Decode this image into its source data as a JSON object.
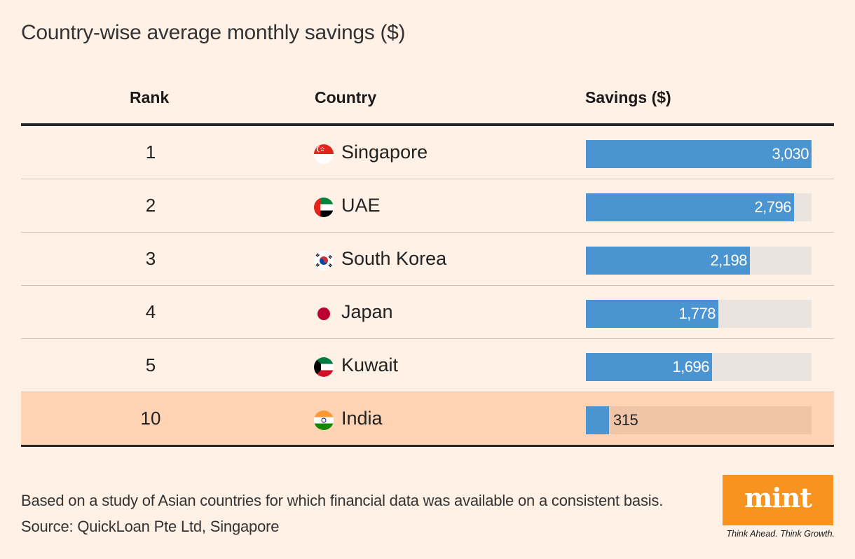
{
  "title": "Country-wise average monthly savings ($)",
  "columns": {
    "rank": "Rank",
    "country": "Country",
    "savings": "Savings ($)"
  },
  "rows": [
    {
      "rank": "1",
      "country": "Singapore",
      "flag": "singapore-flag-icon",
      "value": 3030,
      "label": "3,030",
      "highlight": false
    },
    {
      "rank": "2",
      "country": "UAE",
      "flag": "uae-flag-icon",
      "value": 2796,
      "label": "2,796",
      "highlight": false
    },
    {
      "rank": "3",
      "country": "South Korea",
      "flag": "south-korea-flag-icon",
      "value": 2198,
      "label": "2,198",
      "highlight": false
    },
    {
      "rank": "4",
      "country": "Japan",
      "flag": "japan-flag-icon",
      "value": 1778,
      "label": "1,778",
      "highlight": false
    },
    {
      "rank": "5",
      "country": "Kuwait",
      "flag": "kuwait-flag-icon",
      "value": 1696,
      "label": "1,696",
      "highlight": false
    },
    {
      "rank": "10",
      "country": "India",
      "flag": "india-flag-icon",
      "value": 315,
      "label": "315",
      "highlight": true
    }
  ],
  "colors": {
    "bar": "#4a94d1",
    "track": "#ebe3de",
    "highlight": "#ffd3b3",
    "background": "#fff1e6",
    "logo": "#f7931e"
  },
  "footer": {
    "note": "Based on a study of Asian countries for which financial data was available on a consistent basis.",
    "source": "Source: QuickLoan Pte Ltd, Singapore"
  },
  "logo": {
    "text": "mint",
    "tagline": "Think Ahead. Think Growth."
  },
  "chart_data": {
    "type": "bar",
    "title": "Country-wise average monthly savings ($)",
    "categories": [
      "Singapore",
      "UAE",
      "South Korea",
      "Japan",
      "Kuwait",
      "India"
    ],
    "ranks": [
      1,
      2,
      3,
      4,
      5,
      10
    ],
    "values": [
      3030,
      2796,
      2198,
      1778,
      1696,
      315
    ],
    "xlabel": "",
    "ylabel": "Savings ($)",
    "xlim": [
      0,
      3030
    ]
  }
}
